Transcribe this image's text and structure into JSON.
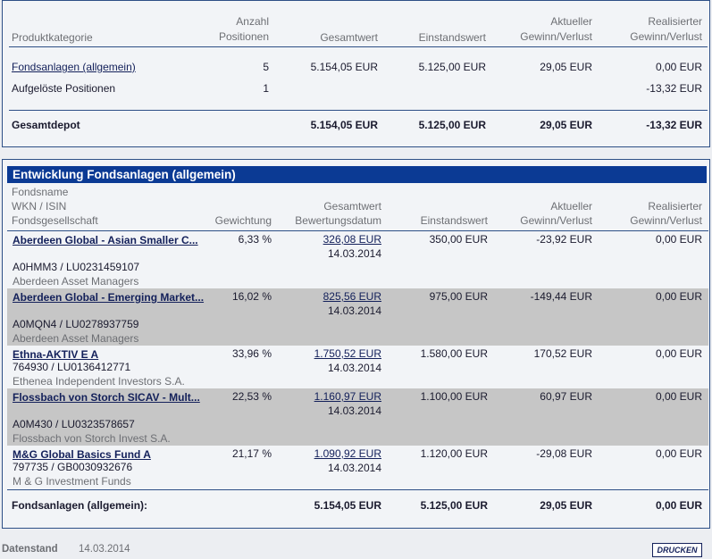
{
  "summary": {
    "headers": {
      "category": "Produktkategorie",
      "count_1": "Anzahl",
      "count_2": "Positionen",
      "total": "Gesamtwert",
      "cost": "Einstandswert",
      "current_1": "Aktueller",
      "current_2": "Gewinn/Verlust",
      "realized_1": "Realisierter",
      "realized_2": "Gewinn/Verlust"
    },
    "rows": [
      {
        "category": "Fondsanlagen (allgemein)",
        "count": "5",
        "total": "5.154,05 EUR",
        "cost": "5.125,00 EUR",
        "current": "29,05 EUR",
        "realized": "0,00 EUR"
      },
      {
        "category": "Aufgelöste Positionen",
        "count": "1",
        "total": "",
        "cost": "",
        "current": "",
        "realized": "-13,32 EUR"
      }
    ],
    "total_row": {
      "label": "Gesamtdepot",
      "total": "5.154,05 EUR",
      "cost": "5.125,00 EUR",
      "current": "29,05 EUR",
      "realized": "-13,32 EUR"
    }
  },
  "detail": {
    "title": "Entwicklung Fondsanlagen (allgemein)",
    "headers": {
      "fund_1": "Fondsname",
      "fund_2": "WKN / ISIN",
      "fund_3": "Fondsgesellschaft",
      "weight": "Gewichtung",
      "value_1": "Gesamtwert",
      "value_2": "Bewertungsdatum",
      "cost": "Einstandswert",
      "current_1": "Aktueller",
      "current_2": "Gewinn/Verlust",
      "realized_1": "Realisierter",
      "realized_2": "Gewinn/Verlust"
    },
    "funds": [
      {
        "name": "Aberdeen Global - Asian Smaller C...",
        "wkn": "A0HMM3 /  LU0231459107",
        "company": "Aberdeen Asset Managers",
        "weight": "6,33 %",
        "value": "326,08 EUR",
        "date": "14.03.2014",
        "cost": "350,00 EUR",
        "current": "-23,92 EUR",
        "realized": "0,00 EUR"
      },
      {
        "name": "Aberdeen Global - Emerging Market...",
        "wkn": "A0MQN4 /  LU0278937759",
        "company": "Aberdeen Asset Managers",
        "weight": "16,02 %",
        "value": "825,56 EUR",
        "date": "14.03.2014",
        "cost": "975,00 EUR",
        "current": "-149,44 EUR",
        "realized": "0,00 EUR"
      },
      {
        "name": "Ethna-AKTIV E A",
        "wkn": "764930 /  LU0136412771",
        "company": "Ethenea Independent Investors S.A.",
        "weight": "33,96 %",
        "value": "1.750,52 EUR",
        "date": "14.03.2014",
        "cost": "1.580,00 EUR",
        "current": "170,52 EUR",
        "realized": "0,00 EUR"
      },
      {
        "name": "Flossbach von Storch SICAV - Mult...",
        "wkn": "A0M430 /  LU0323578657",
        "company": "Flossbach von Storch Invest S.A.",
        "weight": "22,53 %",
        "value": "1.160,97 EUR",
        "date": "14.03.2014",
        "cost": "1.100,00 EUR",
        "current": "60,97 EUR",
        "realized": "0,00 EUR"
      },
      {
        "name": "M&G Global Basics Fund A",
        "wkn": "797735 /  GB0030932676",
        "company": "M & G Investment Funds",
        "weight": "21,17 %",
        "value": "1.090,92 EUR",
        "date": "14.03.2014",
        "cost": "1.120,00 EUR",
        "current": "-29,08 EUR",
        "realized": "0,00 EUR"
      }
    ],
    "total_row": {
      "label": "Fondsanlagen (allgemein):",
      "total": "5.154,05 EUR",
      "cost": "5.125,00 EUR",
      "current": "29,05 EUR",
      "realized": "0,00 EUR"
    }
  },
  "footer": {
    "label": "Datenstand",
    "date": "14.03.2014",
    "print_button": "DRUCKEN"
  }
}
